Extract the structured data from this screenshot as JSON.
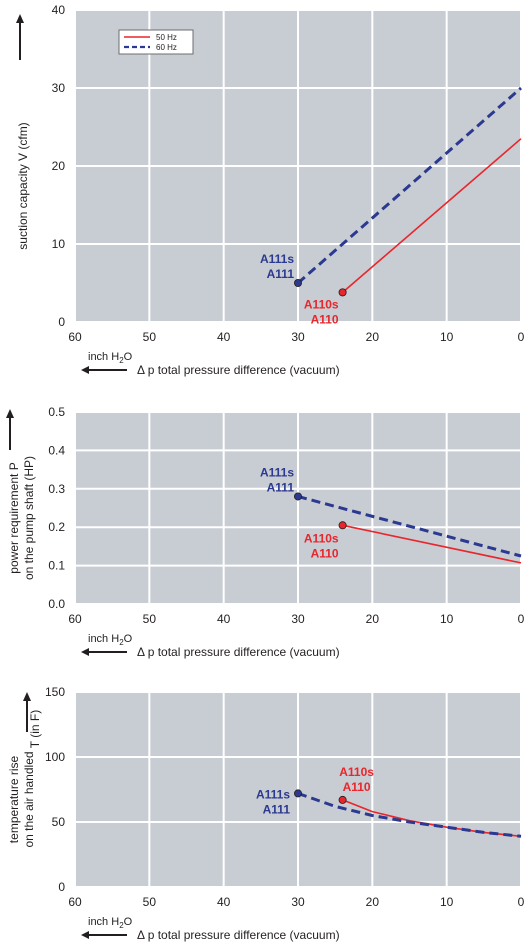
{
  "colors": {
    "plot_bg": "#c8ccd3",
    "grid": "#ffffff",
    "red": "#e8262b",
    "blue": "#2b3990",
    "text": "#231f20"
  },
  "chart_data": [
    {
      "type": "line",
      "ylabel": "suction capacity V (cfm)",
      "xlabel": "Δ p   total pressure difference (vacuum)",
      "xunit_main": "inch H",
      "xunit_sub": "2",
      "xunit_tail": "O",
      "xlim": [
        60,
        0
      ],
      "ylim": [
        0,
        40
      ],
      "xticks": [
        60,
        50,
        40,
        30,
        20,
        10,
        0
      ],
      "yticks": [
        0,
        10,
        20,
        30,
        40
      ],
      "legend": {
        "placement": "top-left",
        "items": [
          {
            "label": "50 Hz",
            "color": "red",
            "dash": false
          },
          {
            "label": "60 Hz",
            "color": "blue",
            "dash": true
          }
        ]
      },
      "series": [
        {
          "name": "50 Hz",
          "color": "red",
          "dash": false,
          "x": [
            24,
            0
          ],
          "y": [
            3.8,
            23.5
          ]
        },
        {
          "name": "60 Hz",
          "color": "blue",
          "dash": true,
          "x": [
            30,
            0
          ],
          "y": [
            5.0,
            30.0
          ]
        }
      ],
      "annotations": [
        {
          "line1": "A111s",
          "line2": "A111",
          "color": "blue",
          "x": 30,
          "y": 5.0,
          "side": "above-left"
        },
        {
          "line1": "A110s",
          "line2": "A110",
          "color": "red",
          "x": 24,
          "y": 3.8,
          "side": "below-left"
        }
      ]
    },
    {
      "type": "line",
      "ylabel_line1": "power requirement P",
      "ylabel_line2": "on the pump shaft (HP)",
      "xlabel": "Δ p   total pressure difference (vacuum)",
      "xunit_main": "inch H",
      "xunit_sub": "2",
      "xunit_tail": "O",
      "xlim": [
        60,
        0
      ],
      "ylim": [
        0,
        0.5
      ],
      "xticks": [
        60,
        50,
        40,
        30,
        20,
        10,
        0
      ],
      "yticks": [
        0,
        0.1,
        0.2,
        0.3,
        0.4,
        0.5
      ],
      "ytick_labels": [
        "0.0",
        "0.1",
        "0.2",
        "0.3",
        "0.4",
        "0.5"
      ],
      "series": [
        {
          "name": "50 Hz",
          "color": "red",
          "dash": false,
          "x": [
            24,
            0
          ],
          "y": [
            0.205,
            0.107
          ]
        },
        {
          "name": "60 Hz",
          "color": "blue",
          "dash": true,
          "x": [
            30,
            0
          ],
          "y": [
            0.28,
            0.125
          ]
        }
      ],
      "annotations": [
        {
          "line1": "A111s",
          "line2": "A111",
          "color": "blue",
          "x": 30,
          "y": 0.28,
          "side": "above-left"
        },
        {
          "line1": "A110s",
          "line2": "A110",
          "color": "red",
          "x": 24,
          "y": 0.205,
          "side": "below-left"
        }
      ]
    },
    {
      "type": "line",
      "ylabel_line1": "temperature rise",
      "ylabel_line2": "on the air handled",
      "ylabel_extra": "T    (in F)",
      "xlabel": "Δ p   total pressure difference (vacuum)",
      "xunit_main": "inch H",
      "xunit_sub": "2",
      "xunit_tail": "O",
      "xlim": [
        60,
        0
      ],
      "ylim": [
        0,
        150
      ],
      "xticks": [
        60,
        50,
        40,
        30,
        20,
        10,
        0
      ],
      "yticks": [
        0,
        50,
        100,
        150
      ],
      "series": [
        {
          "name": "50 Hz",
          "color": "red",
          "dash": false,
          "x": [
            24,
            20,
            15,
            10,
            5,
            0
          ],
          "y": [
            67,
            58,
            51,
            46,
            42,
            39
          ]
        },
        {
          "name": "60 Hz",
          "color": "blue",
          "dash": true,
          "x": [
            30,
            25,
            20,
            15,
            10,
            5,
            0
          ],
          "y": [
            72,
            62,
            55,
            50,
            46,
            42,
            39
          ]
        }
      ],
      "annotations": [
        {
          "line1": "A111s",
          "line2": "A111",
          "color": "blue",
          "x": 30,
          "y": 72,
          "side": "below-left"
        },
        {
          "line1": "A110s",
          "line2": "A110",
          "color": "red",
          "x": 24,
          "y": 67,
          "side": "above-left"
        }
      ]
    }
  ]
}
